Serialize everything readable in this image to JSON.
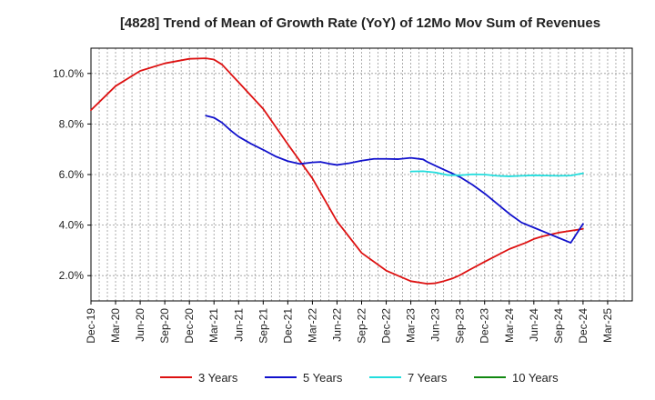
{
  "chart_data": {
    "type": "line",
    "title": "[4828]  Trend of Mean of Growth Rate (YoY) of 12Mo Mov Sum of Revenues",
    "xlabel": "",
    "ylabel": "",
    "ylim": [
      1.0,
      11.0
    ],
    "y_ticks": [
      2.0,
      4.0,
      6.0,
      8.0,
      10.0
    ],
    "y_tick_labels": [
      "2.0%",
      "4.0%",
      "6.0%",
      "8.0%",
      "10.0%"
    ],
    "x_index_range": [
      0,
      22
    ],
    "x_tick_labels": [
      "Dec-19",
      "Mar-20",
      "Jun-20",
      "Sep-20",
      "Dec-20",
      "Mar-21",
      "Jun-21",
      "Sep-21",
      "Dec-21",
      "Mar-22",
      "Jun-22",
      "Sep-22",
      "Dec-22",
      "Mar-23",
      "Jun-23",
      "Sep-23",
      "Dec-23",
      "Mar-24",
      "Jun-24",
      "Sep-24",
      "Dec-24",
      "Mar-25"
    ],
    "grid": true,
    "legend_position": "bottom",
    "series": [
      {
        "name": "3 Years",
        "color": "#dd1111",
        "x": [
          0,
          1,
          2,
          3,
          4,
          4.67,
          5,
          5.33,
          6,
          7,
          8,
          9,
          10,
          11,
          12,
          13,
          13.67,
          14,
          14.33,
          14.67,
          15,
          15.33,
          16,
          17,
          17.67,
          18,
          18.33,
          19,
          20
        ],
        "values": [
          8.55,
          9.5,
          10.1,
          10.4,
          10.58,
          10.6,
          10.55,
          10.35,
          9.65,
          8.6,
          7.2,
          5.85,
          4.15,
          2.9,
          2.2,
          1.78,
          1.68,
          1.7,
          1.78,
          1.88,
          2.02,
          2.2,
          2.55,
          3.05,
          3.3,
          3.45,
          3.55,
          3.7,
          3.85
        ]
      },
      {
        "name": "5 Years",
        "color": "#1111cc",
        "x": [
          4.67,
          5,
          5.33,
          5.67,
          6,
          6.5,
          7,
          7.5,
          8,
          8.5,
          9,
          9.33,
          9.67,
          10,
          10.5,
          11,
          11.5,
          12,
          12.5,
          13,
          13.5,
          13.67,
          14,
          14.33,
          14.67,
          15,
          15.5,
          16,
          16.5,
          17,
          17.5,
          18,
          18.5,
          19,
          19.5,
          20
        ],
        "values": [
          8.33,
          8.25,
          8.05,
          7.75,
          7.5,
          7.22,
          6.98,
          6.72,
          6.53,
          6.42,
          6.48,
          6.5,
          6.43,
          6.38,
          6.45,
          6.55,
          6.62,
          6.62,
          6.61,
          6.66,
          6.6,
          6.5,
          6.35,
          6.2,
          6.05,
          5.9,
          5.6,
          5.25,
          4.85,
          4.45,
          4.1,
          3.9,
          3.7,
          3.5,
          3.3,
          4.05
        ]
      },
      {
        "name": "7 Years",
        "color": "#22dddd",
        "x": [
          13,
          13.5,
          14,
          14.5,
          15,
          15.5,
          16,
          16.5,
          17,
          17.5,
          18,
          18.5,
          19,
          19.5,
          20
        ],
        "values": [
          6.12,
          6.13,
          6.08,
          5.98,
          5.97,
          6.01,
          6.0,
          5.95,
          5.93,
          5.95,
          5.97,
          5.96,
          5.95,
          5.96,
          6.05
        ]
      },
      {
        "name": "10 Years",
        "color": "#118811",
        "x": [],
        "values": []
      }
    ]
  }
}
